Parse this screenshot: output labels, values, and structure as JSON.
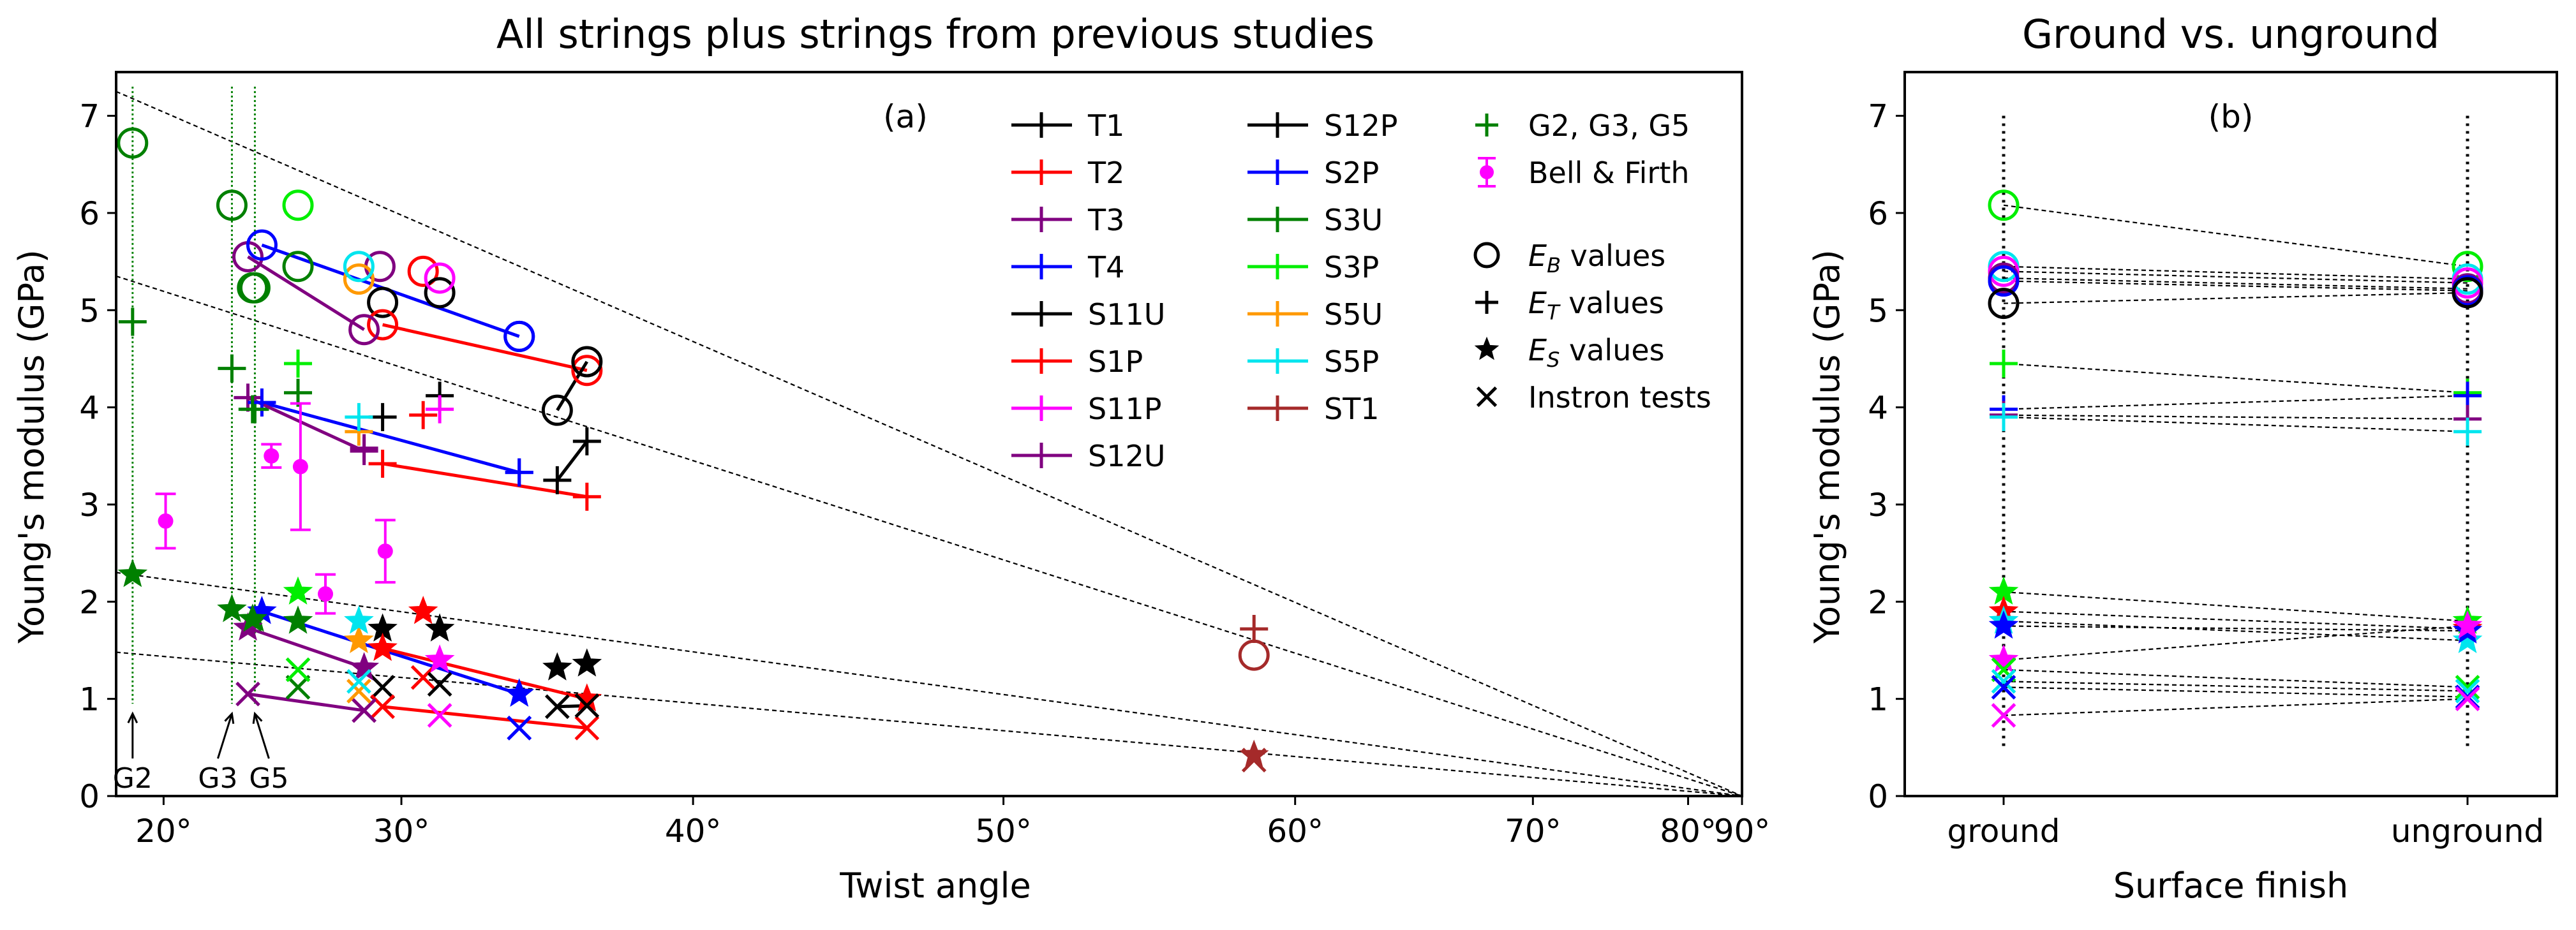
{
  "chart_data": [
    {
      "type": "scatter",
      "title": "All strings plus strings from previous studies",
      "panel_label": "(a)",
      "xlabel": "Twist angle",
      "ylabel": "Young's modulus (GPa)",
      "x_scale": "sin-squared of twist angle (axis linear in sin²θ)",
      "xlim_deg": [
        17.5,
        90
      ],
      "ylim": [
        0,
        7.45
      ],
      "xticks_deg": [
        20,
        30,
        40,
        50,
        60,
        70,
        80,
        90
      ],
      "xtick_labels": [
        "20°",
        "30°",
        "40°",
        "50°",
        "60°",
        "70°",
        "80°",
        "90°"
      ],
      "yticks": [
        0,
        1,
        2,
        3,
        4,
        5,
        6,
        7
      ],
      "ytick_labels": [
        "0",
        "1",
        "2",
        "3",
        "4",
        "5",
        "6",
        "7"
      ],
      "legend_position": "top-right",
      "series": [
        {
          "name": "T1",
          "color": "#000000",
          "EB": [
            [
              29.3,
              5.08
            ]
          ],
          "ET": [
            [
              29.3,
              3.9
            ]
          ],
          "ES": [
            [
              29.3,
              1.72
            ]
          ],
          "IN": [
            [
              29.3,
              1.12
            ]
          ]
        },
        {
          "name": "T2",
          "color": "#ff0000",
          "EB": [
            [
              30.8,
              5.4
            ]
          ],
          "ET": [
            [
              30.8,
              3.92
            ]
          ],
          "ES": [
            [
              30.8,
              1.9
            ]
          ],
          "IN": [
            [
              30.8,
              1.22
            ]
          ]
        },
        {
          "name": "T3",
          "color": "#800080",
          "EB": [
            [
              29.2,
              5.45
            ]
          ],
          "ET": [
            [
              28.6,
              3.58
            ]
          ],
          "ES": [
            [
              28.6,
              1.32
            ]
          ],
          "IN": [
            [
              28.6,
              0.88
            ]
          ]
        },
        {
          "name": "T4",
          "color": "#0000ff",
          "EB": [
            [
              34.2,
              4.73
            ]
          ],
          "ET": [
            [
              34.2,
              3.33
            ]
          ],
          "ES": [
            [
              34.2,
              1.05
            ]
          ],
          "IN": [
            [
              34.2,
              0.7
            ]
          ]
        },
        {
          "name": "S11U",
          "color": "#000000",
          "EB": [
            [
              35.5,
              3.97
            ],
            [
              31.4,
              5.18
            ]
          ],
          "ET": [
            [
              35.5,
              3.25
            ],
            [
              31.4,
              4.12
            ]
          ],
          "ES": [
            [
              35.5,
              1.32
            ],
            [
              31.4,
              1.72
            ]
          ],
          "IN": [
            [
              35.5,
              0.92
            ],
            [
              31.4,
              1.15
            ]
          ]
        },
        {
          "name": "S1P",
          "color": "#ff0000",
          "EB": [
            [
              29.3,
              4.85
            ],
            [
              36.5,
              4.38
            ]
          ],
          "ET": [
            [
              29.3,
              3.42
            ],
            [
              36.5,
              3.08
            ]
          ],
          "ES": [
            [
              29.3,
              1.52
            ],
            [
              36.5,
              1.0
            ]
          ],
          "IN": [
            [
              29.3,
              0.92
            ],
            [
              36.5,
              0.7
            ]
          ]
        },
        {
          "name": "S11P",
          "color": "#ff00ff",
          "EB": [
            [
              31.4,
              5.33
            ]
          ],
          "ET": [
            [
              31.4,
              3.98
            ]
          ],
          "ES": [
            [
              31.4,
              1.4
            ]
          ],
          "IN": [
            [
              31.4,
              0.83
            ]
          ]
        },
        {
          "name": "S12U",
          "color": "#800080",
          "EB": [
            [
              23.9,
              5.55
            ],
            [
              28.6,
              4.8
            ]
          ],
          "ET": [
            [
              23.9,
              4.1
            ],
            [
              28.6,
              3.55
            ]
          ],
          "ES": [
            [
              23.9,
              1.73
            ],
            [
              28.6,
              1.32
            ]
          ],
          "IN": [
            [
              23.9,
              1.05
            ],
            [
              28.6,
              0.88
            ]
          ]
        },
        {
          "name": "S12P",
          "color": "#000000",
          "EB": [
            [
              36.5,
              4.47
            ]
          ],
          "ET": [
            [
              36.5,
              3.65
            ]
          ],
          "ES": [
            [
              36.5,
              1.36
            ]
          ],
          "IN": [
            [
              36.5,
              0.93
            ]
          ]
        },
        {
          "name": "S2P",
          "color": "#0000ff",
          "EB": [
            [
              24.5,
              5.67
            ],
            [
              34.2,
              4.73
            ]
          ],
          "ET": [
            [
              24.5,
              4.05
            ],
            [
              34.2,
              3.33
            ]
          ],
          "ES": [
            [
              24.5,
              1.9
            ],
            [
              34.2,
              1.05
            ]
          ],
          "IN": [
            [
              34.2,
              0.7
            ]
          ]
        },
        {
          "name": "S3U",
          "color": "#008000",
          "EB": [
            [
              24.1,
              5.23
            ],
            [
              26.0,
              5.45
            ]
          ],
          "ET": [
            [
              24.1,
              3.98
            ],
            [
              26.0,
              4.15
            ]
          ],
          "ES": [
            [
              24.1,
              1.82
            ],
            [
              26.0,
              1.8
            ]
          ],
          "IN": [
            [
              26.0,
              1.12
            ]
          ]
        },
        {
          "name": "S3P",
          "color": "#00ee00",
          "EB": [
            [
              26.0,
              6.08
            ]
          ],
          "ET": [
            [
              26.0,
              4.45
            ]
          ],
          "ES": [
            [
              26.0,
              2.1
            ]
          ],
          "IN": [
            [
              26.0,
              1.3
            ]
          ]
        },
        {
          "name": "S5U",
          "color": "#ff9900",
          "EB": [
            [
              28.4,
              5.32
            ]
          ],
          "ET": [
            [
              28.4,
              3.75
            ]
          ],
          "ES": [
            [
              28.4,
              1.6
            ]
          ],
          "IN": [
            [
              28.4,
              1.08
            ]
          ]
        },
        {
          "name": "S5P",
          "color": "#00e5ee",
          "EB": [
            [
              28.4,
              5.45
            ]
          ],
          "ET": [
            [
              28.4,
              3.9
            ]
          ],
          "ES": [
            [
              28.4,
              1.8
            ]
          ],
          "IN": [
            [
              28.4,
              1.18
            ]
          ]
        },
        {
          "name": "ST1",
          "color": "#a52a2a",
          "EB": [
            [
              58.5,
              1.45
            ]
          ],
          "ET": [
            [
              58.5,
              1.72
            ]
          ],
          "ES": [
            [
              58.5,
              0.42
            ]
          ],
          "IN": [
            [
              58.5,
              0.37
            ]
          ]
        }
      ],
      "fit_lines": [
        {
          "series": "T4",
          "color": "#0000ff",
          "points": [
            [
              24.5,
              5.67
            ],
            [
              34.2,
              4.73
            ]
          ]
        },
        {
          "series": "S1P",
          "color": "#ff0000",
          "points": [
            [
              29.3,
              4.85
            ],
            [
              36.5,
              4.38
            ]
          ]
        },
        {
          "series": "S12U",
          "color": "#800080",
          "points": [
            [
              23.9,
              5.55
            ],
            [
              28.6,
              4.8
            ]
          ]
        },
        {
          "series": "S11U",
          "color": "#000000",
          "points": [
            [
              35.5,
              3.97
            ],
            [
              36.5,
              4.47
            ]
          ]
        },
        {
          "series": "T4",
          "color": "#0000ff",
          "points": [
            [
              24.5,
              4.05
            ],
            [
              34.2,
              3.33
            ]
          ]
        },
        {
          "series": "S1P",
          "color": "#ff0000",
          "points": [
            [
              29.3,
              3.42
            ],
            [
              36.5,
              3.08
            ]
          ]
        },
        {
          "series": "S12U",
          "color": "#800080",
          "points": [
            [
              23.9,
              4.1
            ],
            [
              28.6,
              3.55
            ]
          ]
        },
        {
          "series": "S11U",
          "color": "#000000",
          "points": [
            [
              35.5,
              3.25
            ],
            [
              36.5,
              3.65
            ]
          ]
        },
        {
          "series": "T4",
          "color": "#0000ff",
          "points": [
            [
              24.5,
              1.9
            ],
            [
              34.2,
              1.05
            ]
          ]
        },
        {
          "series": "S1P",
          "color": "#ff0000",
          "points": [
            [
              29.3,
              1.52
            ],
            [
              36.5,
              1.0
            ]
          ]
        },
        {
          "series": "S12U",
          "color": "#800080",
          "points": [
            [
              23.9,
              1.73
            ],
            [
              28.6,
              1.32
            ]
          ]
        },
        {
          "series": "S12U",
          "color": "#800080",
          "points": [
            [
              23.9,
              1.05
            ],
            [
              28.6,
              0.88
            ]
          ]
        },
        {
          "series": "S1P",
          "color": "#ff0000",
          "points": [
            [
              29.3,
              0.92
            ],
            [
              36.5,
              0.7
            ]
          ]
        },
        {
          "series": "S11U",
          "color": "#000000",
          "points": [
            [
              35.5,
              0.92
            ],
            [
              36.5,
              0.93
            ]
          ]
        }
      ],
      "dashed_reference_lines": [
        {
          "y_at_17_5deg": 7.25,
          "y_at_90deg": 0
        },
        {
          "y_at_17_5deg": 5.35,
          "y_at_90deg": 0
        },
        {
          "y_at_17_5deg": 2.3,
          "y_at_90deg": 0
        },
        {
          "y_at_17_5deg": 1.48,
          "y_at_90deg": 0
        }
      ],
      "G_strings": {
        "color": "#008000",
        "points": [
          {
            "label": "G2",
            "x": 18.4,
            "EB": 6.72,
            "ET": 4.88,
            "ES": 2.28
          },
          {
            "label": "G3",
            "x": 23.2,
            "EB": 6.08,
            "ET": 4.4,
            "ES": 1.92
          },
          {
            "label": "G5",
            "x": 24.2,
            "EB": 5.23,
            "ET": 3.98,
            "ES": 1.82
          }
        ]
      },
      "bell_firth": {
        "color": "#ff00ff",
        "points": [
          {
            "x": 20.1,
            "y": 2.83,
            "err": 0.28
          },
          {
            "x": 24.9,
            "y": 3.5,
            "err": 0.12
          },
          {
            "x": 26.1,
            "y": 3.39,
            "err": 0.65
          },
          {
            "x": 27.1,
            "y": 2.08,
            "err": 0.2
          },
          {
            "x": 29.4,
            "y": 2.52,
            "err": 0.32
          }
        ]
      },
      "marker_legend": [
        "E_B values",
        "E_T values",
        "E_S values",
        "Instron tests"
      ],
      "extra_legend": [
        "G2, G3, G5",
        "Bell & Firth"
      ]
    },
    {
      "type": "line",
      "title": "Ground vs. unground",
      "panel_label": "(b)",
      "xlabel": "Surface finish",
      "ylabel": "Young's modulus (GPa)",
      "categories": [
        "ground",
        "unground"
      ],
      "ylim": [
        0,
        7.45
      ],
      "yticks": [
        0,
        1,
        2,
        3,
        4,
        5,
        6,
        7
      ],
      "ytick_labels": [
        "0",
        "1",
        "2",
        "3",
        "4",
        "5",
        "6",
        "7"
      ],
      "pairs": [
        {
          "kind": "EB",
          "color": "#00ee00",
          "ground": 6.08,
          "unground": 5.45
        },
        {
          "kind": "EB",
          "color": "#00e5ee",
          "ground": 5.45,
          "unground": 5.32
        },
        {
          "kind": "EB",
          "color": "#ff00ff",
          "ground": 5.4,
          "unground": 5.28
        },
        {
          "kind": "EB",
          "color": "#800080",
          "ground": 5.33,
          "unground": 5.22
        },
        {
          "kind": "EB",
          "color": "#0000ff",
          "ground": 5.3,
          "unground": 5.2
        },
        {
          "kind": "EB",
          "color": "#000000",
          "ground": 5.07,
          "unground": 5.18
        },
        {
          "kind": "ET",
          "color": "#00ee00",
          "ground": 4.45,
          "unground": 4.15
        },
        {
          "kind": "ET",
          "color": "#0000ff",
          "ground": 3.98,
          "unground": 4.12
        },
        {
          "kind": "ET",
          "color": "#800080",
          "ground": 3.92,
          "unground": 3.88
        },
        {
          "kind": "ET",
          "color": "#00e5ee",
          "ground": 3.9,
          "unground": 3.75
        },
        {
          "kind": "ES",
          "color": "#00ee00",
          "ground": 2.1,
          "unground": 1.8
        },
        {
          "kind": "ES",
          "color": "#ff0000",
          "ground": 1.9,
          "unground": 1.72
        },
        {
          "kind": "ES",
          "color": "#00e5ee",
          "ground": 1.8,
          "unground": 1.6
        },
        {
          "kind": "ES",
          "color": "#0000ff",
          "ground": 1.75,
          "unground": 1.7
        },
        {
          "kind": "ES",
          "color": "#ff00ff",
          "ground": 1.4,
          "unground": 1.75
        },
        {
          "kind": "IN",
          "color": "#00ee00",
          "ground": 1.3,
          "unground": 1.12
        },
        {
          "kind": "IN",
          "color": "#00e5ee",
          "ground": 1.18,
          "unground": 1.08
        },
        {
          "kind": "IN",
          "color": "#0000ff",
          "ground": 1.12,
          "unground": 1.02
        },
        {
          "kind": "IN",
          "color": "#ff00ff",
          "ground": 0.83,
          "unground": 1.0
        }
      ]
    }
  ]
}
